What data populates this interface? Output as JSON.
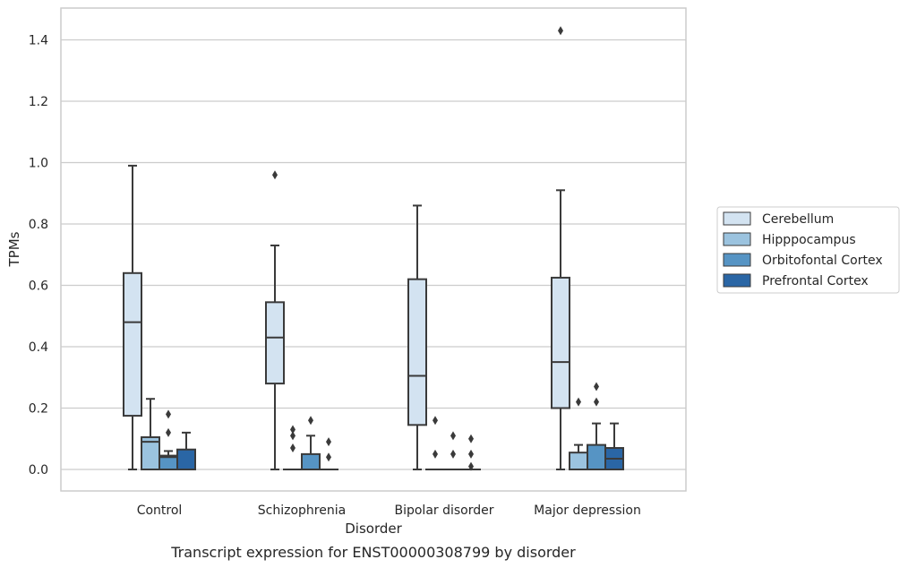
{
  "caption": "Transcript expression for ENST00000308799 by disorder",
  "chart_data": {
    "type": "box",
    "xlabel": "Disorder",
    "ylabel": "TPMs",
    "ylim": [
      -0.07,
      1.5
    ],
    "yticks": [
      0.0,
      0.2,
      0.4,
      0.6,
      0.8,
      1.0,
      1.2,
      1.4
    ],
    "ytick_labels": [
      "0.0",
      "0.2",
      "0.4",
      "0.6",
      "0.8",
      "1.0",
      "1.2",
      "1.4"
    ],
    "grid": true,
    "legend_position": "right",
    "categories": [
      "Control",
      "Schizophrenia",
      "Bipolar disorder",
      "Major depression"
    ],
    "series": [
      {
        "name": "Cerebellum",
        "color": "#d3e3f1",
        "boxes": [
          {
            "whislo": 0.0,
            "q1": 0.175,
            "med": 0.48,
            "q3": 0.64,
            "whishi": 0.99,
            "fliers": []
          },
          {
            "whislo": 0.0,
            "q1": 0.28,
            "med": 0.43,
            "q3": 0.545,
            "whishi": 0.73,
            "fliers": [
              0.96
            ]
          },
          {
            "whislo": 0.0,
            "q1": 0.145,
            "med": 0.305,
            "q3": 0.62,
            "whishi": 0.86,
            "fliers": []
          },
          {
            "whislo": 0.0,
            "q1": 0.2,
            "med": 0.35,
            "q3": 0.625,
            "whishi": 0.91,
            "fliers": [
              1.43
            ]
          }
        ]
      },
      {
        "name": "Hipppocampus",
        "color": "#9bc3df",
        "boxes": [
          {
            "whislo": 0.0,
            "q1": 0.0,
            "med": 0.09,
            "q3": 0.105,
            "whishi": 0.23,
            "fliers": []
          },
          {
            "whislo": 0.0,
            "q1": 0.0,
            "med": 0.0,
            "q3": 0.0,
            "whishi": 0.0,
            "fliers": [
              0.07,
              0.11,
              0.13
            ]
          },
          {
            "whislo": 0.0,
            "q1": 0.0,
            "med": 0.0,
            "q3": 0.0,
            "whishi": 0.0,
            "fliers": [
              0.05,
              0.16
            ]
          },
          {
            "whislo": 0.0,
            "q1": 0.0,
            "med": 0.0,
            "q3": 0.055,
            "whishi": 0.08,
            "fliers": [
              0.22
            ]
          }
        ]
      },
      {
        "name": "Orbitofontal Cortex",
        "color": "#5694c4",
        "boxes": [
          {
            "whislo": 0.0,
            "q1": 0.0,
            "med": 0.04,
            "q3": 0.045,
            "whishi": 0.06,
            "fliers": [
              0.12,
              0.18
            ]
          },
          {
            "whislo": 0.0,
            "q1": 0.0,
            "med": 0.0,
            "q3": 0.05,
            "whishi": 0.11,
            "fliers": [
              0.16
            ]
          },
          {
            "whislo": 0.0,
            "q1": 0.0,
            "med": 0.0,
            "q3": 0.0,
            "whishi": 0.0,
            "fliers": [
              0.05,
              0.11
            ]
          },
          {
            "whislo": 0.0,
            "q1": 0.0,
            "med": 0.0,
            "q3": 0.08,
            "whishi": 0.15,
            "fliers": [
              0.22,
              0.27
            ]
          }
        ]
      },
      {
        "name": "Prefrontal Cortex",
        "color": "#2a66a5",
        "boxes": [
          {
            "whislo": 0.0,
            "q1": 0.0,
            "med": 0.0,
            "q3": 0.065,
            "whishi": 0.12,
            "fliers": []
          },
          {
            "whislo": 0.0,
            "q1": 0.0,
            "med": 0.0,
            "q3": 0.0,
            "whishi": 0.0,
            "fliers": [
              0.04,
              0.09
            ]
          },
          {
            "whislo": 0.0,
            "q1": 0.0,
            "med": 0.0,
            "q3": 0.0,
            "whishi": 0.0,
            "fliers": [
              0.01,
              0.05,
              0.1
            ]
          },
          {
            "whislo": 0.0,
            "q1": 0.0,
            "med": 0.035,
            "q3": 0.07,
            "whishi": 0.15,
            "fliers": []
          }
        ]
      }
    ]
  }
}
